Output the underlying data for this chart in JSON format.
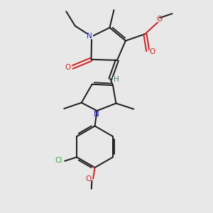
{
  "bg_color": "#e8e8e8",
  "bond_color": "#1a1a1a",
  "N_color": "#2020cc",
  "O_color": "#cc2020",
  "Cl_color": "#33aa33",
  "H_color": "#447777",
  "figsize": [
    3.0,
    3.0
  ],
  "dpi": 100,
  "xlim": [
    0,
    10
  ],
  "ylim": [
    0,
    10
  ],
  "lw": 1.4,
  "lw_double_inner": 1.2,
  "fontsize": 7.5
}
